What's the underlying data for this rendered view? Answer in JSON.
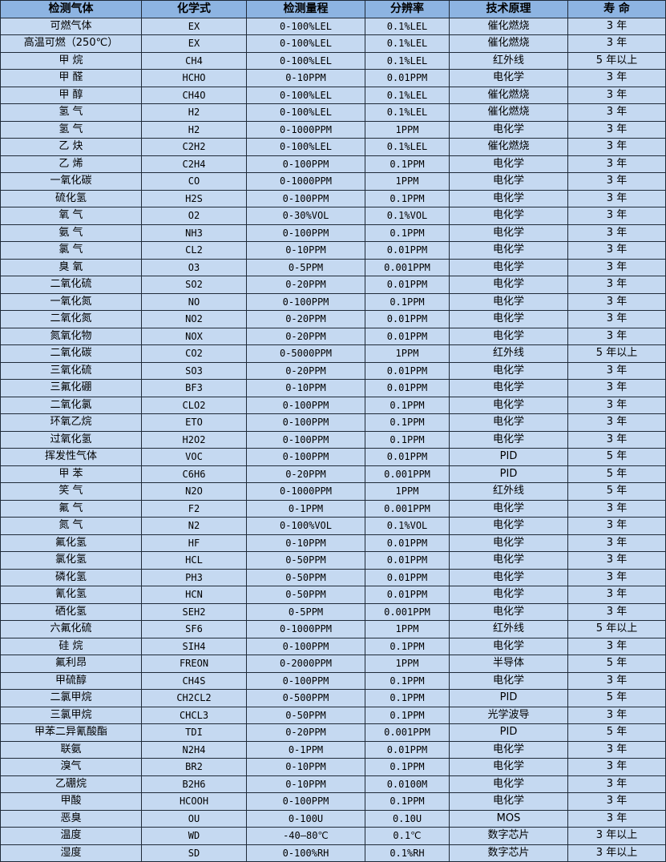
{
  "colors": {
    "header_bg": "#8db4e2",
    "row_bg": "#c5d9f1",
    "border": "#1f2a38"
  },
  "table": {
    "headers": [
      "检测气体",
      "化学式",
      "检测量程",
      "分辨率",
      "技术原理",
      "寿 命"
    ],
    "rows": [
      [
        "可燃气体",
        "EX",
        "0-100%LEL",
        "0.1%LEL",
        "催化燃烧",
        "3 年"
      ],
      [
        "高温可燃（250℃）",
        "EX",
        "0-100%LEL",
        "0.1%LEL",
        "催化燃烧",
        "3 年"
      ],
      [
        "甲 烷",
        "CH4",
        "0-100%LEL",
        "0.1%LEL",
        "红外线",
        "5 年以上"
      ],
      [
        "甲 醛",
        "HCHO",
        "0-10PPM",
        "0.01PPM",
        "电化学",
        "3 年"
      ],
      [
        "甲 醇",
        "CH4O",
        "0-100%LEL",
        "0.1%LEL",
        "催化燃烧",
        "3 年"
      ],
      [
        "氢 气",
        "H2",
        "0-100%LEL",
        "0.1%LEL",
        "催化燃烧",
        "3 年"
      ],
      [
        "氢 气",
        "H2",
        "0-1000PPM",
        "1PPM",
        "电化学",
        "3 年"
      ],
      [
        "乙 炔",
        "C2H2",
        "0-100%LEL",
        "0.1%LEL",
        "催化燃烧",
        "3 年"
      ],
      [
        "乙 烯",
        "C2H4",
        "0-100PPM",
        "0.1PPM",
        "电化学",
        "3 年"
      ],
      [
        "一氧化碳",
        "CO",
        "0-1000PPM",
        "1PPM",
        "电化学",
        "3 年"
      ],
      [
        "硫化氢",
        "H2S",
        "0-100PPM",
        "0.1PPM",
        "电化学",
        "3 年"
      ],
      [
        "氧 气",
        "O2",
        "0-30%VOL",
        "0.1%VOL",
        "电化学",
        "3 年"
      ],
      [
        "氨 气",
        "NH3",
        "0-100PPM",
        "0.1PPM",
        "电化学",
        "3 年"
      ],
      [
        "氯 气",
        "CL2",
        "0-10PPM",
        "0.01PPM",
        "电化学",
        "3 年"
      ],
      [
        "臭 氧",
        "O3",
        "0-5PPM",
        "0.001PPM",
        "电化学",
        "3 年"
      ],
      [
        "二氧化硫",
        "SO2",
        "0-20PPM",
        "0.01PPM",
        "电化学",
        "3 年"
      ],
      [
        "一氧化氮",
        "NO",
        "0-100PPM",
        "0.1PPM",
        "电化学",
        "3 年"
      ],
      [
        "二氧化氮",
        "NO2",
        "0-20PPM",
        "0.01PPM",
        "电化学",
        "3 年"
      ],
      [
        "氮氧化物",
        "NOX",
        "0-20PPM",
        "0.01PPM",
        "电化学",
        "3 年"
      ],
      [
        "二氧化碳",
        "CO2",
        "0-5000PPM",
        "1PPM",
        "红外线",
        "5 年以上"
      ],
      [
        "三氧化硫",
        "SO3",
        "0-20PPM",
        "0.01PPM",
        "电化学",
        "3 年"
      ],
      [
        "三氟化硼",
        "BF3",
        "0-10PPM",
        "0.01PPM",
        "电化学",
        "3 年"
      ],
      [
        "二氧化氯",
        "CLO2",
        "0-100PPM",
        "0.1PPM",
        "电化学",
        "3 年"
      ],
      [
        "环氧乙烷",
        "ETO",
        "0-100PPM",
        "0.1PPM",
        "电化学",
        "3 年"
      ],
      [
        "过氧化氢",
        "H2O2",
        "0-100PPM",
        "0.1PPM",
        "电化学",
        "3 年"
      ],
      [
        "挥发性气体",
        "VOC",
        "0-100PPM",
        "0.01PPM",
        "PID",
        "5 年"
      ],
      [
        "甲 苯",
        "C6H6",
        "0-20PPM",
        "0.001PPM",
        "PID",
        "5 年"
      ],
      [
        "笑 气",
        "N2O",
        "0-1000PPM",
        "1PPM",
        "红外线",
        "5 年"
      ],
      [
        "氟 气",
        "F2",
        "0-1PPM",
        "0.001PPM",
        "电化学",
        "3 年"
      ],
      [
        "氮 气",
        "N2",
        "0-100%VOL",
        "0.1%VOL",
        "电化学",
        "3 年"
      ],
      [
        "氟化氢",
        "HF",
        "0-10PPM",
        "0.01PPM",
        "电化学",
        "3 年"
      ],
      [
        "氯化氢",
        "HCL",
        "0-50PPM",
        "0.01PPM",
        "电化学",
        "3 年"
      ],
      [
        "磷化氢",
        "PH3",
        "0-50PPM",
        "0.01PPM",
        "电化学",
        "3 年"
      ],
      [
        "氰化氢",
        "HCN",
        "0-50PPM",
        "0.01PPM",
        "电化学",
        "3 年"
      ],
      [
        "硒化氢",
        "SEH2",
        "0-5PPM",
        "0.001PPM",
        "电化学",
        "3 年"
      ],
      [
        "六氟化硫",
        "SF6",
        "0-1000PPM",
        "1PPM",
        "红外线",
        "5 年以上"
      ],
      [
        "硅 烷",
        "SIH4",
        "0-100PPM",
        "0.1PPM",
        "电化学",
        "3 年"
      ],
      [
        "氟利昂",
        "FREON",
        "0-2000PPM",
        "1PPM",
        "半导体",
        "5 年"
      ],
      [
        "甲硫醇",
        "CH4S",
        "0-100PPM",
        "0.1PPM",
        "电化学",
        "3 年"
      ],
      [
        "二氯甲烷",
        "CH2CL2",
        "0-500PPM",
        "0.1PPM",
        "PID",
        "5 年"
      ],
      [
        "三氯甲烷",
        "CHCL3",
        "0-50PPM",
        "0.1PPM",
        "光学波导",
        "3 年"
      ],
      [
        "甲苯二异氰酸酯",
        "TDI",
        "0-20PPM",
        "0.001PPM",
        "PID",
        "5 年"
      ],
      [
        "联氨",
        "N2H4",
        "0-1PPM",
        "0.01PPM",
        "电化学",
        "3 年"
      ],
      [
        "溴气",
        "BR2",
        "0-10PPM",
        "0.1PPM",
        "电化学",
        "3 年"
      ],
      [
        "乙硼烷",
        "B2H6",
        "0-10PPM",
        "0.0100M",
        "电化学",
        "3 年"
      ],
      [
        "甲酸",
        "HCOOH",
        "0-100PPM",
        "0.1PPM",
        "电化学",
        "3 年"
      ],
      [
        "恶臭",
        "OU",
        "0-100U",
        "0.10U",
        "MOS",
        "3 年"
      ],
      [
        "温度",
        "WD",
        "-40—80℃",
        "0.1℃",
        "数字芯片",
        "3 年以上"
      ],
      [
        "湿度",
        "SD",
        "0-100%RH",
        "0.1%RH",
        "数字芯片",
        "3 年以上"
      ]
    ]
  }
}
